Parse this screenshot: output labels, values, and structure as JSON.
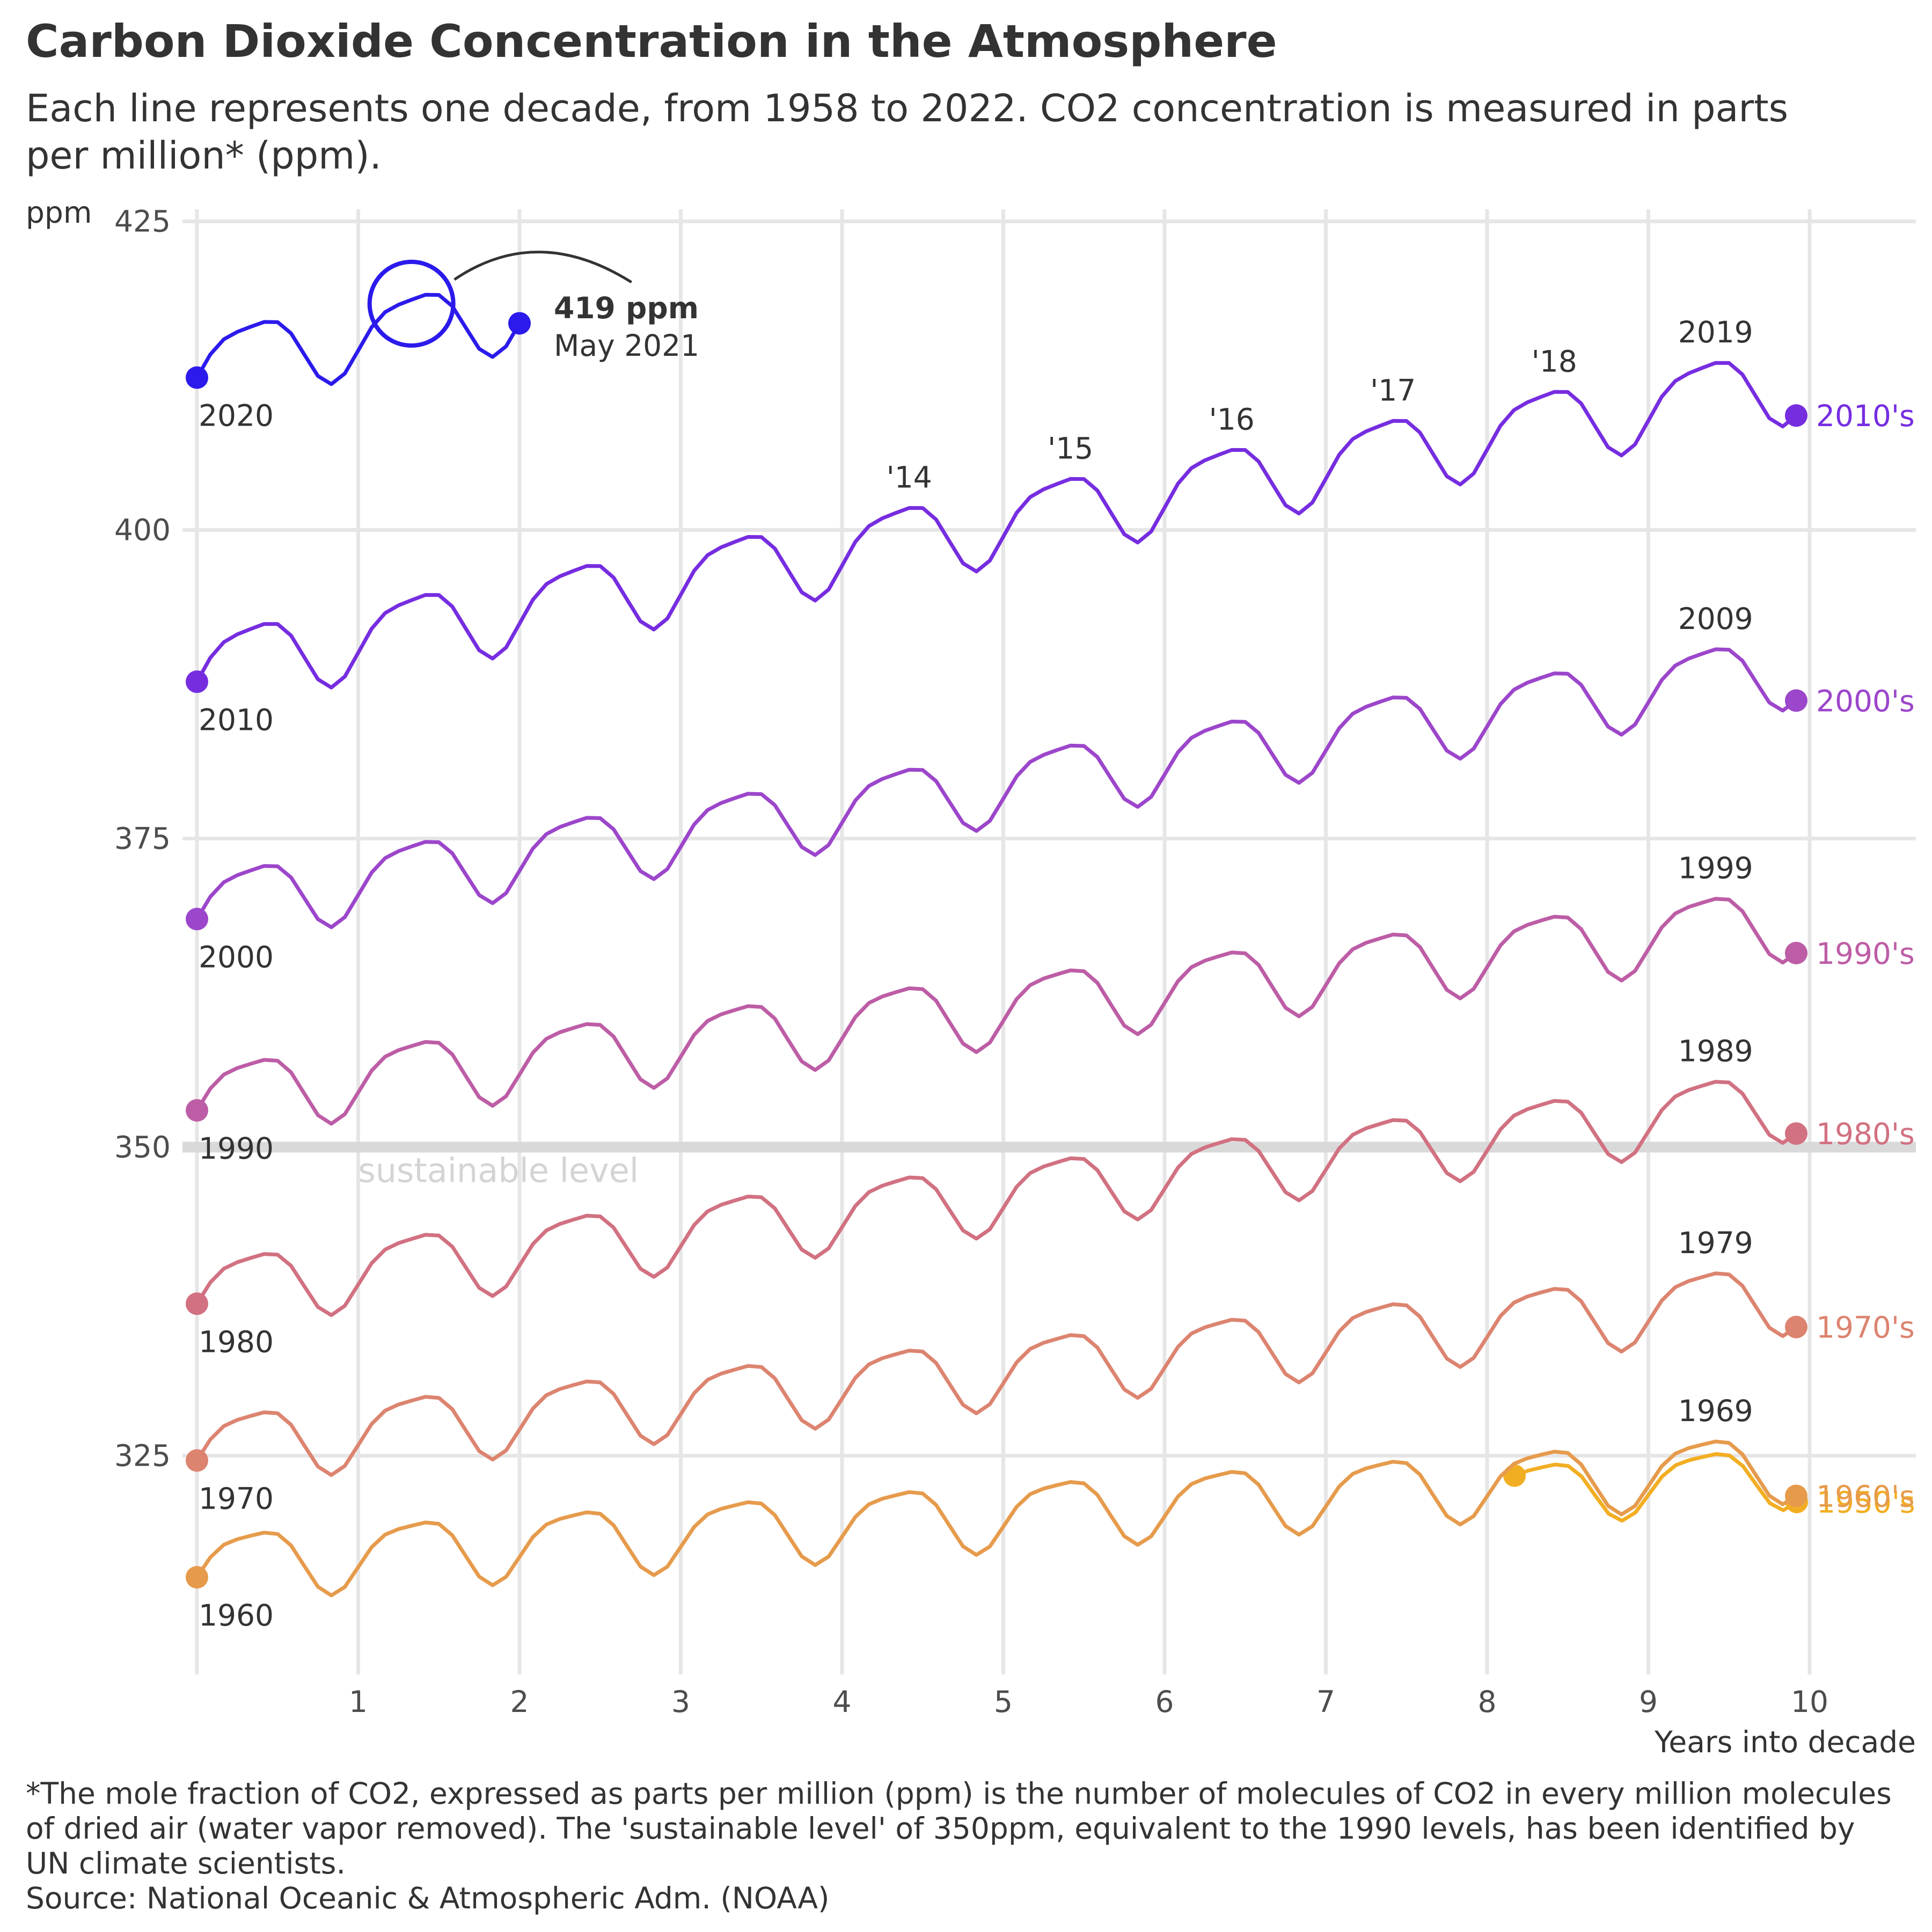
{
  "chart_data": {
    "type": "line",
    "title": "Carbon Dioxide Concentration in the Atmosphere",
    "subtitle": "Each line represents one decade, from 1958 to 2022. CO2 concentration is measured in parts per million* (ppm).",
    "xlabel": "Years into decade",
    "ylabel": "ppm",
    "xlim": [
      -0.1,
      10.65
    ],
    "ylim": [
      306,
      426
    ],
    "x_ticks": [
      1,
      2,
      3,
      4,
      5,
      6,
      7,
      8,
      9,
      10
    ],
    "y_ticks": [
      325,
      350,
      375,
      400,
      425
    ],
    "grid": true,
    "reference_line": {
      "value": 350,
      "label": "sustainable level"
    },
    "annotation": {
      "value_label": "419 ppm",
      "date_label": "May 2021",
      "x": 1.33,
      "y": 419.2
    },
    "series": [
      {
        "name": "1950's",
        "color": "#F2AE23",
        "start_year": 1958,
        "start_label": "",
        "x_start": 8.17,
        "x_end": 9.92,
        "base": 315.2,
        "slope": 0.85,
        "amp": 2.8,
        "peak_labels": []
      },
      {
        "name": "1960's",
        "color": "#E69B4C",
        "start_year": 1960,
        "start_label": "1960",
        "x_start": 0,
        "x_end": 9.92,
        "base": 316.3,
        "slope": 0.82,
        "amp": 3.1,
        "peak_labels": [
          {
            "year": 9,
            "text": "1969"
          }
        ]
      },
      {
        "name": "1970's",
        "color": "#DC8470",
        "start_year": 1970,
        "start_label": "1970",
        "x_start": 0,
        "x_end": 9.92,
        "base": 325.8,
        "slope": 1.25,
        "amp": 3.2,
        "peak_labels": [
          {
            "year": 9,
            "text": "1979"
          }
        ]
      },
      {
        "name": "1980's",
        "color": "#D17181",
        "start_year": 1980,
        "start_label": "1980",
        "x_start": 0,
        "x_end": 9.92,
        "base": 338.5,
        "slope": 1.55,
        "amp": 3.2,
        "peak_labels": [
          {
            "year": 9,
            "text": "1989"
          }
        ]
      },
      {
        "name": "1990's",
        "color": "#BD5DA6",
        "start_year": 1990,
        "start_label": "1990",
        "x_start": 0,
        "x_end": 9.92,
        "base": 354.2,
        "slope": 1.45,
        "amp": 3.3,
        "peak_labels": [
          {
            "year": 9,
            "text": "1999"
          }
        ]
      },
      {
        "name": "2000's",
        "color": "#9C46CB",
        "start_year": 2000,
        "start_label": "2000",
        "x_start": 0,
        "x_end": 9.92,
        "base": 369.7,
        "slope": 1.95,
        "amp": 3.3,
        "peak_labels": [
          {
            "year": 9,
            "text": "2009"
          }
        ]
      },
      {
        "name": "2010's",
        "color": "#762DE0",
        "start_year": 2010,
        "start_label": "2010",
        "x_start": 0,
        "x_end": 9.92,
        "base": 389.0,
        "slope": 2.35,
        "amp": 3.5,
        "peak_labels": [
          {
            "year": 4,
            "text": "'14"
          },
          {
            "year": 5,
            "text": "'15"
          },
          {
            "year": 6,
            "text": "'16"
          },
          {
            "year": 7,
            "text": "'17"
          },
          {
            "year": 8,
            "text": "'18"
          },
          {
            "year": 9,
            "text": "2019"
          }
        ]
      },
      {
        "name": "2020's",
        "color": "#2B1AEB",
        "start_year": 2020,
        "start_label": "2020",
        "x_start": 0,
        "x_end": 2.0,
        "base": 413.6,
        "slope": 2.2,
        "amp": 3.4,
        "peak_labels": []
      }
    ]
  },
  "footnote": "*The mole fraction of CO2, expressed as parts per million (ppm) is the number of molecules of CO2 in every million molecules of dried air (water vapor removed). The 'sustainable level' of 350ppm, equivalent to the 1990 levels, has been identified by UN climate scientists.",
  "source": "Source: National Oceanic & Atmospheric Adm. (NOAA)"
}
